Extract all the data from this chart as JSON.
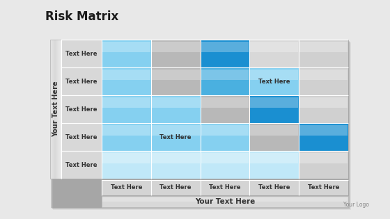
{
  "title": "Risk Matrix",
  "title_fontsize": 12,
  "title_fontweight": "bold",
  "grid_rows": 5,
  "grid_cols": 5,
  "row_labels": [
    "Text Here",
    "Text Here",
    "Text Here",
    "Text Here",
    "Text Here"
  ],
  "col_labels": [
    "Text Here",
    "Text Here",
    "Text Here",
    "Text Here",
    "Text Here"
  ],
  "y_axis_label": "Your Text Here",
  "x_axis_label": "Your Text Here",
  "logo_text": "Your Logo",
  "cell_colors": [
    [
      "#85d0f0",
      "#b8b8b8",
      "#1a8fd1",
      "#d8d8d8",
      "#d0d0d0"
    ],
    [
      "#85d0f0",
      "#b8b8b8",
      "#4ab0e0",
      "#85d0f0",
      "#d0d0d0"
    ],
    [
      "#85d0f0",
      "#85d0f0",
      "#b8b8b8",
      "#1a8fd1",
      "#d0d0d0"
    ],
    [
      "#85d0f0",
      "#85d0f0",
      "#85d0f0",
      "#b8b8b8",
      "#1a8fd1"
    ],
    [
      "#c0e8f8",
      "#c0e8f8",
      "#c0e8f8",
      "#c0e8f8",
      "#d0d0d0"
    ]
  ],
  "cell_text": [
    [
      "",
      "",
      "",
      "",
      ""
    ],
    [
      "",
      "",
      "",
      "Text Here",
      ""
    ],
    [
      "",
      "",
      "",
      "",
      ""
    ],
    [
      "",
      "Text Here",
      "",
      "",
      ""
    ],
    [
      "",
      "",
      "",
      "",
      ""
    ]
  ],
  "bg_color": "#eaeaea",
  "label_fontsize": 6.0,
  "cell_text_fontsize": 6.0,
  "axis_label_fontsize": 7.0,
  "logo_fontsize": 5.5
}
